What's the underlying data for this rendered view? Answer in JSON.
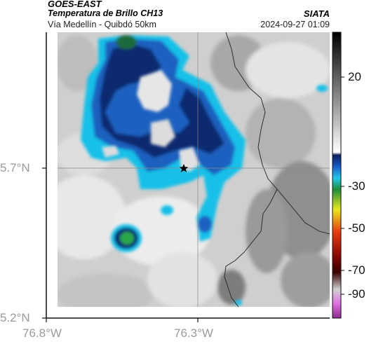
{
  "header": {
    "satellite": "GOES-EAST",
    "product": "Temperatura de Brillo CH13",
    "region": "Vía Medellín - Quibdó 50km",
    "organization": "SIATA",
    "datetime": "2024-09-27 01:09"
  },
  "axes": {
    "y_ticks": [
      "5.7°N",
      "5.2°N"
    ],
    "x_ticks": [
      "76.8°W",
      "76.3°W"
    ]
  },
  "colorbar": {
    "ticks": [
      "20",
      "-30",
      "-50",
      "-70",
      "-90"
    ]
  },
  "marker": {
    "icon": "star-icon",
    "color": "#000000"
  },
  "colors": {
    "deep_cloud": "#0d2a70",
    "cloud_blue": "#1a60c0",
    "cloud_cyan": "#18c0e8",
    "core_green": "#2aa84a",
    "warm_gray": "#8c8c8c",
    "bright_gray": "#d6d6d6"
  }
}
